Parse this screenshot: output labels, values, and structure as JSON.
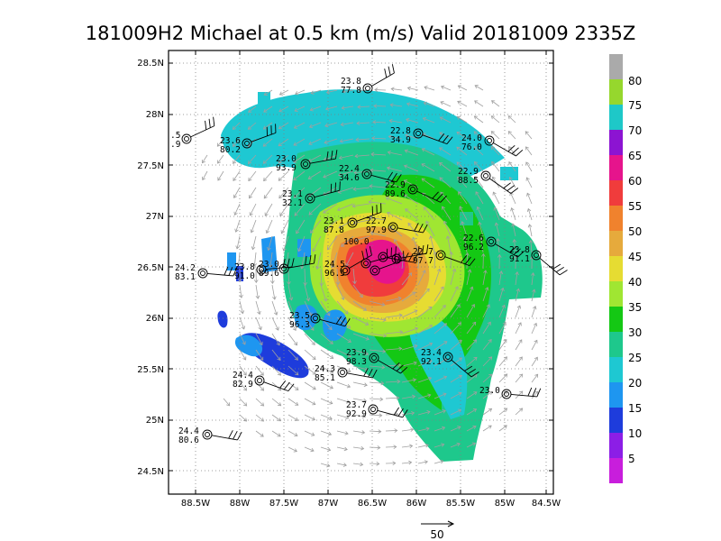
{
  "title": "181009H2 Michael at 0.5 km (m/s) Valid 20181009 2335Z",
  "axes": {
    "x_ticks": [
      "88.5W",
      "88W",
      "87.5W",
      "87W",
      "86.5W",
      "86W",
      "85.5W",
      "85W",
      "84.5W"
    ],
    "y_ticks": [
      "28.5N",
      "28N",
      "27.5N",
      "27N",
      "26.5N",
      "26N",
      "25.5N",
      "25N",
      "24.5N"
    ]
  },
  "colorbar": {
    "labels": [
      "80",
      "75",
      "70",
      "65",
      "60",
      "55",
      "50",
      "45",
      "40",
      "35",
      "30",
      "25",
      "20",
      "15",
      "10",
      "5"
    ],
    "colors": [
      "#aaaaaa",
      "#96d72d",
      "#1ec8c8",
      "#8c14d2",
      "#e6148c",
      "#f03c3c",
      "#f0822d",
      "#e6aa3c",
      "#e6dc32",
      "#a0e632",
      "#14c814",
      "#1ec88c",
      "#1ec8d2",
      "#1e96f0",
      "#1e3cdc",
      "#8c1ee6",
      "#c81edc"
    ]
  },
  "observations": [
    {
      "top": "23.8",
      "bottom": "77.8"
    },
    {
      "top": "22.8",
      "bottom": "34.9"
    },
    {
      "top": "24.0",
      "bottom": "76.0"
    },
    {
      "top": "23.6",
      "bottom": "80.2"
    },
    {
      "top": ".5",
      "bottom": ".9"
    },
    {
      "top": "23.0",
      "bottom": "93.9"
    },
    {
      "top": "22.4",
      "bottom": "34.6"
    },
    {
      "top": "22.9",
      "bottom": "89.6"
    },
    {
      "top": "22.9",
      "bottom": "88.5"
    },
    {
      "top": "23.1",
      "bottom": "32.1"
    },
    {
      "top": "23.1",
      "bottom": "87.8"
    },
    {
      "top": "22.7",
      "bottom": "97.9"
    },
    {
      "top": "100.0",
      "bottom": ""
    },
    {
      "top": "22.6",
      "bottom": "96.2"
    },
    {
      "top": "23.8",
      "bottom": "91.1"
    },
    {
      "top": "22.7",
      "bottom": "97.7"
    },
    {
      "top": "24.2",
      "bottom": "83.1"
    },
    {
      "top": "23.8",
      "bottom": "91.0"
    },
    {
      "top": "23.0",
      "bottom": "89.6"
    },
    {
      "top": "24.5",
      "bottom": "96.5"
    },
    {
      "top": "23.5",
      "bottom": "96.3"
    },
    {
      "top": "23.9",
      "bottom": "98.3"
    },
    {
      "top": "23.4",
      "bottom": "92.1"
    },
    {
      "top": "24.4",
      "bottom": "82.9"
    },
    {
      "top": "24.3",
      "bottom": "85.1"
    },
    {
      "top": "23.0",
      "bottom": ""
    },
    {
      "top": "23.7",
      "bottom": "92.9"
    },
    {
      "top": "24.4",
      "bottom": "80.6"
    }
  ],
  "reference_vector": {
    "label": "50"
  }
}
